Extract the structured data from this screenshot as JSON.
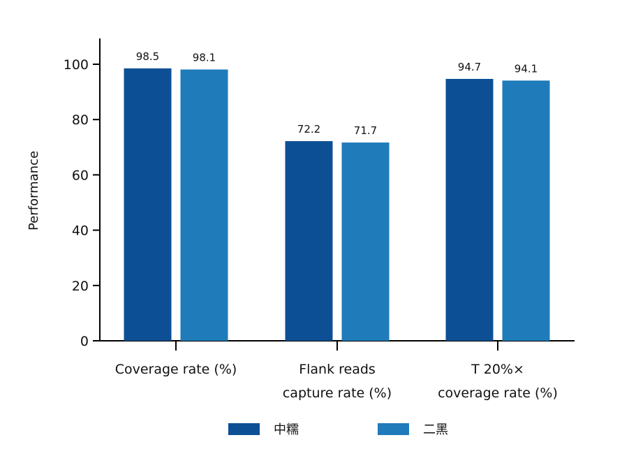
{
  "chart_data": {
    "type": "bar",
    "title": "",
    "xlabel": "",
    "ylabel": "Performance",
    "ylim": [
      0,
      110
    ],
    "yticks": [
      0,
      20,
      40,
      60,
      80,
      100
    ],
    "grid": false,
    "legend_position": "bottom",
    "categories": [
      [
        "Coverage rate (%)"
      ],
      [
        "Flank reads",
        "capture rate (%)"
      ],
      [
        "T 20%×",
        "coverage rate (%)"
      ]
    ],
    "series": [
      {
        "name": "中糯",
        "color": "#0d4f95",
        "values": [
          98.5,
          72.2,
          94.7
        ],
        "labels": [
          "98.5",
          "72.2",
          "94.7"
        ]
      },
      {
        "name": "二黑",
        "color": "#1f7bba",
        "values": [
          98.1,
          71.7,
          94.1
        ],
        "labels": [
          "98.1",
          "71.7",
          "94.1"
        ]
      }
    ]
  }
}
